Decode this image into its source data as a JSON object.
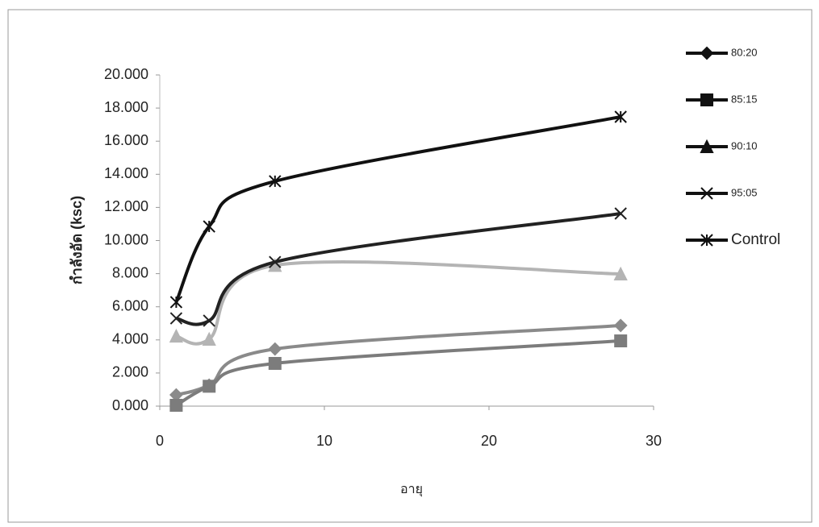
{
  "chart_data": {
    "type": "line",
    "x_label": "อายุ",
    "y_label": "กำลังอัด (ksc)",
    "x": [
      1,
      3,
      7,
      28
    ],
    "series": [
      {
        "name": "80:20",
        "color": "#8a8a8a",
        "marker": "diamond",
        "values": [
          0.68,
          1.27,
          3.45,
          4.87
        ]
      },
      {
        "name": "85:15",
        "color": "#7c7c7c",
        "marker": "square",
        "values": [
          0.05,
          1.2,
          2.58,
          3.94
        ]
      },
      {
        "name": "90:10",
        "color": "#b4b4b4",
        "marker": "triangle",
        "values": [
          4.23,
          4.04,
          8.5,
          7.98
        ]
      },
      {
        "name": "95:05",
        "color": "#222222",
        "marker": "cross",
        "values": [
          5.3,
          5.16,
          8.7,
          11.63
        ]
      },
      {
        "name": "Control",
        "color": "#111111",
        "marker": "asterisk",
        "values": [
          6.28,
          10.85,
          13.58,
          17.47
        ]
      }
    ],
    "xlim": [
      0,
      30
    ],
    "xticks": [
      0,
      10,
      20,
      30
    ],
    "ylim": [
      0,
      20
    ],
    "yticks": [
      {
        "value": 0,
        "label": "0.000"
      },
      {
        "value": 2,
        "label": "2.000"
      },
      {
        "value": 4,
        "label": "4.000"
      },
      {
        "value": 6,
        "label": "6.000"
      },
      {
        "value": 8,
        "label": "8.000"
      },
      {
        "value": 10,
        "label": "10.000"
      },
      {
        "value": 12,
        "label": "12.000"
      },
      {
        "value": 14,
        "label": "14.000"
      },
      {
        "value": 16,
        "label": "16.000"
      },
      {
        "value": 18,
        "label": "18.000"
      },
      {
        "value": 20,
        "label": "20.000"
      }
    ],
    "grid": false,
    "smooth": true,
    "legend": "right"
  }
}
